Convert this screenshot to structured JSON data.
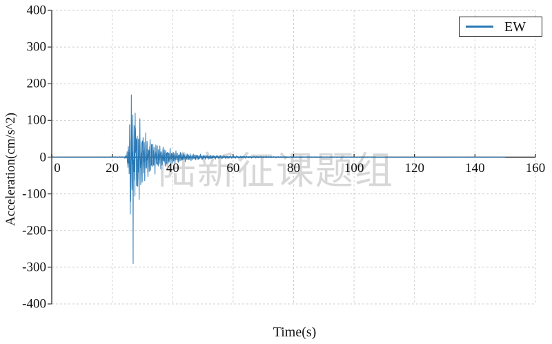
{
  "colors": {
    "accent": "#2878b5",
    "spine": "#4d4d4d",
    "zero_axis": "#1a1a1a",
    "grid": "#cfcfcf",
    "watermark": "#d7d7d7",
    "text": "#111111"
  },
  "chart_data": {
    "type": "line",
    "title": "",
    "xlabel": "Time(s)",
    "ylabel": "Acceleration(cm/s^2)",
    "watermark": "陆新征课题组",
    "xlim": [
      0,
      160
    ],
    "ylim": [
      -400,
      400
    ],
    "x_ticks": [
      0,
      20,
      40,
      60,
      80,
      100,
      120,
      140,
      160
    ],
    "y_ticks": [
      -400,
      -300,
      -200,
      -100,
      0,
      100,
      200,
      300,
      400
    ],
    "grid": true,
    "grid_style": "dashed",
    "legend": {
      "position": "top-right",
      "entries": [
        {
          "label": "EW",
          "color": "#2878b5"
        }
      ]
    },
    "series": [
      {
        "name": "EW",
        "color": "#2878b5",
        "duration_s": 150,
        "sample_step_s": 0.04,
        "peak_acceleration": {
          "t": 26.3,
          "value": 170
        },
        "min_acceleration": {
          "t": 26.9,
          "value": -290
        },
        "extra_spikes": [
          {
            "t": 25.95,
            "value": -155
          },
          {
            "t": 27.6,
            "value": 120
          },
          {
            "t": 28.9,
            "value": -115
          }
        ],
        "envelope": [
          [
            0,
            0.8
          ],
          [
            14,
            0.9
          ],
          [
            20,
            1.2
          ],
          [
            24,
            1.5
          ],
          [
            24.8,
            8
          ],
          [
            25.2,
            40
          ],
          [
            25.6,
            80
          ],
          [
            26,
            115
          ],
          [
            26.6,
            125
          ],
          [
            27.4,
            115
          ],
          [
            28.2,
            105
          ],
          [
            29,
            95
          ],
          [
            30,
            80
          ],
          [
            31,
            65
          ],
          [
            32,
            55
          ],
          [
            33.5,
            45
          ],
          [
            35,
            36
          ],
          [
            37,
            28
          ],
          [
            39,
            22
          ],
          [
            41,
            17
          ],
          [
            43,
            13
          ],
          [
            45,
            10
          ],
          [
            48,
            8
          ],
          [
            51,
            6
          ],
          [
            55,
            4.5
          ],
          [
            60,
            3.5
          ],
          [
            66,
            2.8
          ],
          [
            72,
            2.2
          ],
          [
            80,
            1.8
          ],
          [
            90,
            1.4
          ],
          [
            100,
            1.2
          ],
          [
            115,
            1
          ],
          [
            130,
            0.9
          ],
          [
            150,
            0.8
          ]
        ]
      }
    ]
  }
}
